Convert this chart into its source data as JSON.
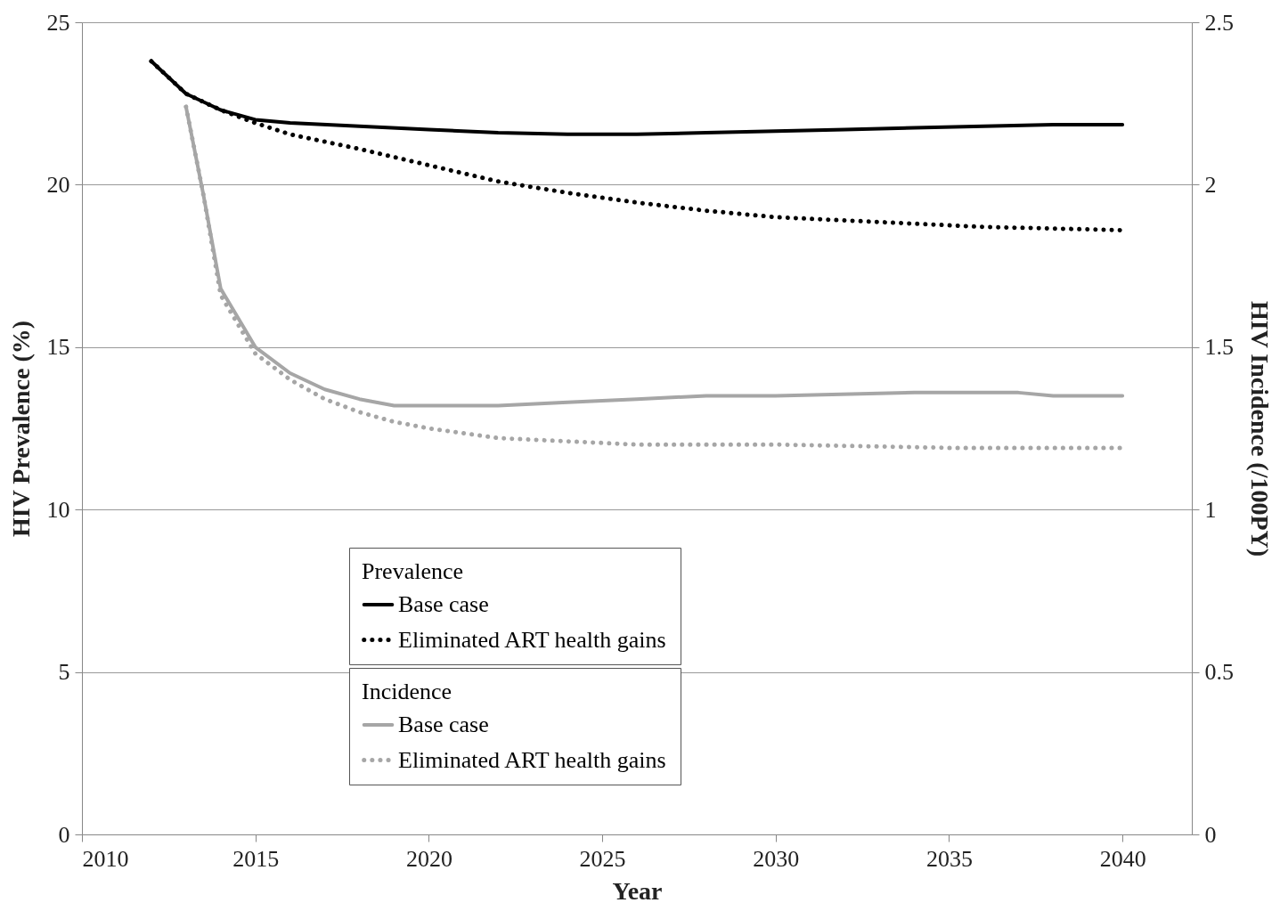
{
  "chart_data": {
    "type": "line",
    "xlabel": "Year",
    "ylabel": "HIV Prevalence (%)",
    "y2label": "HIV Incidence (/100PY)",
    "xlim": [
      2010,
      2042
    ],
    "xticks": [
      2010,
      2015,
      2020,
      2025,
      2030,
      2035,
      2040
    ],
    "ylim": [
      0,
      25
    ],
    "yticks": [
      0,
      5,
      10,
      15,
      20,
      25
    ],
    "y2lim": [
      0,
      2.5
    ],
    "y2ticks": [
      0,
      0.5,
      1,
      1.5,
      2,
      2.5
    ],
    "grid": "y",
    "legend": "bottom",
    "marker": "none",
    "annotations": [
      "Prevalence",
      "Incidence"
    ],
    "series": [
      {
        "name": "Base case",
        "color": "#000000",
        "line_style": "solid",
        "x": [
          2012,
          2013,
          2014,
          2015,
          2016,
          2018,
          2020,
          2022,
          2024,
          2026,
          2028,
          2030,
          2032,
          2034,
          2036,
          2038,
          2040
        ],
        "values": [
          23.8,
          22.8,
          22.3,
          22.0,
          21.9,
          21.8,
          21.7,
          21.6,
          21.55,
          21.55,
          21.6,
          21.65,
          21.7,
          21.75,
          21.8,
          21.85,
          21.85
        ]
      },
      {
        "name": "Eliminated ART health gains",
        "color": "#000000",
        "line_style": "dotted",
        "x": [
          2012,
          2013,
          2014,
          2015,
          2016,
          2018,
          2020,
          2022,
          2024,
          2026,
          2028,
          2030,
          2032,
          2034,
          2036,
          2038,
          2040
        ],
        "values": [
          23.8,
          22.8,
          22.3,
          21.9,
          21.55,
          21.1,
          20.6,
          20.1,
          19.75,
          19.45,
          19.2,
          19.0,
          18.9,
          18.8,
          18.7,
          18.65,
          18.6
        ]
      },
      {
        "name": "Base case",
        "color": "#a6a6a6",
        "line_style": "solid",
        "axis": "y2",
        "x": [
          2013,
          2013.5,
          2014,
          2015,
          2016,
          2017,
          2018,
          2019,
          2020,
          2022,
          2024,
          2026,
          2028,
          2030,
          2034,
          2037,
          2038,
          2040
        ],
        "values": [
          2.24,
          1.97,
          1.68,
          1.5,
          1.42,
          1.37,
          1.34,
          1.32,
          1.32,
          1.32,
          1.33,
          1.34,
          1.35,
          1.35,
          1.36,
          1.36,
          1.35,
          1.35
        ]
      },
      {
        "name": "Eliminated ART health gains",
        "color": "#a6a6a6",
        "line_style": "dotted",
        "axis": "y2",
        "x": [
          2013,
          2013.5,
          2014,
          2015,
          2016,
          2017,
          2018,
          2019,
          2020,
          2022,
          2024,
          2026,
          2030,
          2035,
          2040
        ],
        "values": [
          2.24,
          1.97,
          1.66,
          1.48,
          1.4,
          1.34,
          1.3,
          1.27,
          1.25,
          1.22,
          1.21,
          1.2,
          1.2,
          1.19,
          1.19
        ]
      }
    ]
  }
}
